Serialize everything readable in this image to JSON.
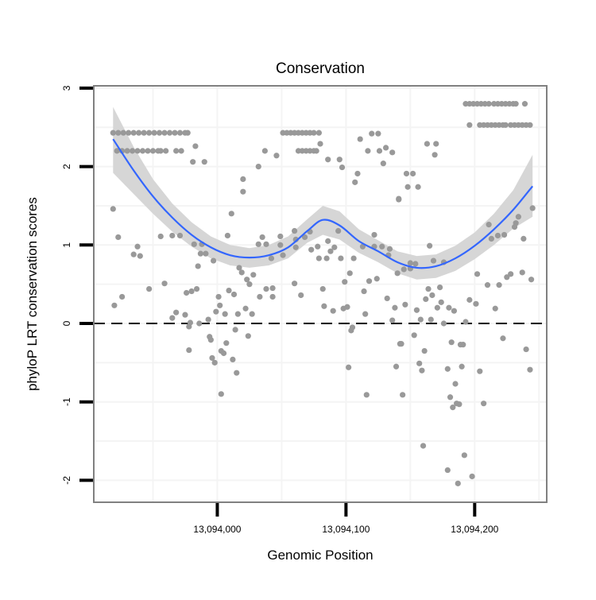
{
  "chart_data": {
    "type": "scatter",
    "title": "Conservation",
    "xlabel": "Genomic Position",
    "ylabel": "phyloP LRT conservation scores",
    "xlim": [
      13093904,
      13094256
    ],
    "ylim": [
      -2.3,
      3.0
    ],
    "x_ticks": [
      {
        "value": 13094000,
        "label": "13,094,000"
      },
      {
        "value": 13094100,
        "label": "13,094,100"
      },
      {
        "value": 13094200,
        "label": "13,094,200"
      }
    ],
    "y_ticks": [
      {
        "value": 3,
        "label": "3"
      },
      {
        "value": 2,
        "label": "2"
      },
      {
        "value": 1,
        "label": "1"
      },
      {
        "value": 0,
        "label": "0"
      },
      {
        "value": -1,
        "label": "-1"
      },
      {
        "value": -2,
        "label": "-2"
      }
    ],
    "grid": true,
    "reference_line": {
      "y": 0,
      "style": "dashed"
    },
    "colors": {
      "points": "#999999",
      "smooth": "#3366FF",
      "band": "#d6d6d6",
      "border": "#808080"
    },
    "rows": [
      {
        "y": 2.43,
        "x": [
          13093919,
          13093923,
          13093927,
          13093931,
          13093935,
          13093939,
          13093943,
          13093947,
          13093951,
          13093955,
          13093959,
          13093963,
          13093967,
          13093971,
          13093975,
          13093977,
          13094051,
          13094054,
          13094057,
          13094060,
          13094063,
          13094066,
          13094069,
          13094072,
          13094075,
          13094079
        ]
      },
      {
        "y": 2.2,
        "x": [
          13093922,
          13093926,
          13093930,
          13093934,
          13093938,
          13093942,
          13093946,
          13093950,
          13093954,
          13093956,
          13093960,
          13093968,
          13093972,
          13094063,
          13094066,
          13094069,
          13094072,
          13094075,
          13094077
        ]
      },
      {
        "y": 2.8,
        "x": [
          13094193,
          13094196,
          13094199,
          13094202,
          13094205,
          13094208,
          13094211,
          13094215,
          13094218,
          13094221,
          13094224,
          13094227,
          13094230,
          13094232,
          13094239
        ]
      },
      {
        "y": 2.53,
        "x": [
          13094196,
          13094204,
          13094207,
          13094210,
          13094213,
          13094216,
          13094219,
          13094222,
          13094224,
          13094228,
          13094231,
          13094234,
          13094237,
          13094240,
          13094243
        ]
      }
    ],
    "points": [
      [
        13093919,
        1.46
      ],
      [
        13093923,
        1.1
      ],
      [
        13093926,
        0.34
      ],
      [
        13093920,
        0.23
      ],
      [
        13093935,
        0.88
      ],
      [
        13093940,
        0.86
      ],
      [
        13093938,
        0.98
      ],
      [
        13093947,
        0.44
      ],
      [
        13093959,
        0.51
      ],
      [
        13093956,
        1.11
      ],
      [
        13093965,
        1.12
      ],
      [
        13093971,
        1.12
      ],
      [
        13093982,
        1.01
      ],
      [
        13093988,
        1.01
      ],
      [
        13093987,
        0.89
      ],
      [
        13093991,
        0.89
      ],
      [
        13093997,
        0.8
      ],
      [
        13093985,
        0.73
      ],
      [
        13094011,
        1.4
      ],
      [
        13094008,
        1.12
      ],
      [
        13094020,
        1.84
      ],
      [
        13094020,
        1.68
      ],
      [
        13093983,
        2.26
      ],
      [
        13093981,
        2.06
      ],
      [
        13093990,
        2.06
      ],
      [
        13094017,
        0.71
      ],
      [
        13094019,
        0.65
      ],
      [
        13094023,
        0.56
      ],
      [
        13094025,
        0.5
      ],
      [
        13093976,
        0.39
      ],
      [
        13093980,
        0.41
      ],
      [
        13093984,
        0.44
      ],
      [
        13094001,
        0.34
      ],
      [
        13094002,
        0.23
      ],
      [
        13094009,
        0.42
      ],
      [
        13094013,
        0.37
      ],
      [
        13093968,
        0.14
      ],
      [
        13093965,
        0.07
      ],
      [
        13093975,
        0.11
      ],
      [
        13093979,
        0.01
      ],
      [
        13093978,
        -0.04
      ],
      [
        13093986,
        0.0
      ],
      [
        13093993,
        0.05
      ],
      [
        13093999,
        0.15
      ],
      [
        13094006,
        0.12
      ],
      [
        13094016,
        0.12
      ],
      [
        13094022,
        0.19
      ],
      [
        13094027,
        0.12
      ],
      [
        13094014,
        -0.08
      ],
      [
        13094024,
        -0.16
      ],
      [
        13093978,
        -0.34
      ],
      [
        13093994,
        -0.17
      ],
      [
        13093995,
        -0.21
      ],
      [
        13094007,
        -0.25
      ],
      [
        13094003,
        -0.35
      ],
      [
        13094005,
        -0.38
      ],
      [
        13093996,
        -0.44
      ],
      [
        13093998,
        -0.5
      ],
      [
        13094012,
        -0.46
      ],
      [
        13094015,
        -0.63
      ],
      [
        13094003,
        -0.9
      ],
      [
        13094037,
        2.2
      ],
      [
        13094046,
        2.14
      ],
      [
        13094032,
        2.0
      ],
      [
        13094080,
        2.29
      ],
      [
        13094086,
        2.09
      ],
      [
        13094095,
        2.09
      ],
      [
        13094097,
        1.99
      ],
      [
        13094111,
        2.35
      ],
      [
        13094117,
        2.2
      ],
      [
        13094120,
        2.42
      ],
      [
        13094125,
        2.42
      ],
      [
        13094126,
        2.2
      ],
      [
        13094131,
        2.24
      ],
      [
        13094136,
        2.18
      ],
      [
        13094129,
        2.04
      ],
      [
        13094109,
        1.91
      ],
      [
        13094107,
        1.8
      ],
      [
        13094141,
        1.59
      ],
      [
        13094035,
        1.1
      ],
      [
        13094032,
        1.01
      ],
      [
        13094038,
        1.01
      ],
      [
        13094049,
        1.11
      ],
      [
        13094049,
        1.0
      ],
      [
        13094051,
        0.87
      ],
      [
        13094042,
        0.83
      ],
      [
        13094060,
        1.18
      ],
      [
        13094061,
        1.07
      ],
      [
        13094061,
        0.97
      ],
      [
        13094068,
        1.1
      ],
      [
        13094072,
        1.17
      ],
      [
        13094073,
        0.94
      ],
      [
        13094078,
        0.98
      ],
      [
        13094079,
        0.83
      ],
      [
        13094085,
        0.83
      ],
      [
        13094086,
        1.05
      ],
      [
        13094091,
        0.97
      ],
      [
        13094088,
        0.92
      ],
      [
        13094094,
        1.18
      ],
      [
        13094096,
        0.83
      ],
      [
        13094106,
        0.83
      ],
      [
        13094113,
        0.98
      ],
      [
        13094122,
        1.13
      ],
      [
        13094122,
        0.98
      ],
      [
        13094128,
        0.98
      ],
      [
        13094134,
        0.95
      ],
      [
        13094133,
        0.87
      ],
      [
        13094140,
        0.64
      ],
      [
        13094103,
        0.64
      ],
      [
        13094099,
        0.53
      ],
      [
        13094118,
        0.54
      ],
      [
        13094124,
        0.57
      ],
      [
        13094114,
        0.41
      ],
      [
        13094132,
        0.32
      ],
      [
        13094138,
        0.2
      ],
      [
        13094136,
        0.04
      ],
      [
        13094028,
        0.62
      ],
      [
        13094038,
        0.44
      ],
      [
        13094043,
        0.45
      ],
      [
        13094043,
        0.34
      ],
      [
        13094033,
        0.34
      ],
      [
        13094060,
        0.51
      ],
      [
        13094065,
        0.36
      ],
      [
        13094082,
        0.44
      ],
      [
        13094083,
        0.22
      ],
      [
        13094090,
        0.16
      ],
      [
        13094098,
        0.19
      ],
      [
        13094101,
        0.21
      ],
      [
        13094105,
        -0.05
      ],
      [
        13094104,
        -0.09
      ],
      [
        13094115,
        0.12
      ],
      [
        13094102,
        -0.56
      ],
      [
        13094116,
        -0.91
      ],
      [
        13094139,
        -0.55
      ],
      [
        13094142,
        -0.26
      ],
      [
        13094163,
        2.29
      ],
      [
        13094170,
        2.29
      ],
      [
        13094169,
        2.15
      ],
      [
        13094147,
        1.91
      ],
      [
        13094152,
        1.91
      ],
      [
        13094148,
        1.74
      ],
      [
        13094156,
        1.74
      ],
      [
        13094141,
        1.58
      ],
      [
        13094245,
        1.47
      ],
      [
        13094211,
        1.26
      ],
      [
        13094234,
        1.36
      ],
      [
        13094232,
        1.28
      ],
      [
        13094231,
        1.23
      ],
      [
        13094213,
        1.08
      ],
      [
        13094218,
        1.12
      ],
      [
        13094223,
        1.13
      ],
      [
        13094238,
        1.08
      ],
      [
        13094202,
        0.63
      ],
      [
        13094210,
        0.49
      ],
      [
        13094219,
        0.49
      ],
      [
        13094225,
        0.59
      ],
      [
        13094228,
        0.63
      ],
      [
        13094237,
        0.65
      ],
      [
        13094244,
        0.56
      ],
      [
        13094165,
        0.99
      ],
      [
        13094168,
        0.8
      ],
      [
        13094176,
        0.78
      ],
      [
        13094150,
        0.77
      ],
      [
        13094154,
        0.76
      ],
      [
        13094145,
        0.69
      ],
      [
        13094150,
        0.7
      ],
      [
        13094164,
        0.44
      ],
      [
        13094173,
        0.46
      ],
      [
        13094167,
        0.36
      ],
      [
        13094162,
        0.31
      ],
      [
        13094174,
        0.27
      ],
      [
        13094171,
        0.2
      ],
      [
        13094180,
        0.2
      ],
      [
        13094184,
        0.16
      ],
      [
        13094196,
        0.3
      ],
      [
        13094201,
        0.25
      ],
      [
        13094216,
        0.19
      ],
      [
        13094146,
        0.24
      ],
      [
        13094155,
        0.17
      ],
      [
        13094158,
        0.05
      ],
      [
        13094166,
        0.05
      ],
      [
        13094176,
        0.0
      ],
      [
        13094193,
        0.02
      ],
      [
        13094153,
        -0.15
      ],
      [
        13094143,
        -0.26
      ],
      [
        13094161,
        -0.35
      ],
      [
        13094182,
        -0.24
      ],
      [
        13094189,
        -0.27
      ],
      [
        13094191,
        -0.27
      ],
      [
        13094222,
        -0.19
      ],
      [
        13094240,
        -0.33
      ],
      [
        13094157,
        -0.51
      ],
      [
        13094159,
        -0.6
      ],
      [
        13094179,
        -0.58
      ],
      [
        13094190,
        -0.55
      ],
      [
        13094204,
        -0.61
      ],
      [
        13094243,
        -0.59
      ],
      [
        13094185,
        -0.77
      ],
      [
        13094181,
        -0.94
      ],
      [
        13094186,
        -1.02
      ],
      [
        13094183,
        -1.07
      ],
      [
        13094188,
        -1.03
      ],
      [
        13094207,
        -1.02
      ],
      [
        13094144,
        -0.91
      ],
      [
        13094160,
        -1.56
      ],
      [
        13094192,
        -1.68
      ],
      [
        13094179,
        -1.87
      ],
      [
        13094198,
        -1.95
      ],
      [
        13094187,
        -2.04
      ]
    ],
    "smooth": {
      "method": "loess",
      "x": [
        13093919,
        13093935,
        13093950,
        13093965,
        13093980,
        13093995,
        13094010,
        13094025,
        13094040,
        13094055,
        13094070,
        13094082,
        13094095,
        13094110,
        13094125,
        13094140,
        13094155,
        13094170,
        13094185,
        13094200,
        13094215,
        13094230,
        13094245
      ],
      "y": [
        2.35,
        1.95,
        1.62,
        1.35,
        1.13,
        0.97,
        0.87,
        0.84,
        0.87,
        0.97,
        1.18,
        1.32,
        1.25,
        1.05,
        0.92,
        0.78,
        0.71,
        0.73,
        0.83,
        0.99,
        1.2,
        1.45,
        1.75
      ],
      "lo": [
        1.92,
        1.65,
        1.4,
        1.17,
        0.98,
        0.83,
        0.74,
        0.71,
        0.74,
        0.83,
        1.03,
        1.13,
        1.07,
        0.9,
        0.78,
        0.64,
        0.56,
        0.58,
        0.67,
        0.82,
        1.0,
        1.21,
        1.36
      ],
      "hi": [
        2.76,
        2.25,
        1.84,
        1.53,
        1.29,
        1.11,
        1.0,
        0.96,
        1.0,
        1.11,
        1.33,
        1.5,
        1.43,
        1.2,
        1.06,
        0.92,
        0.86,
        0.88,
        0.99,
        1.16,
        1.4,
        1.7,
        2.15
      ]
    }
  }
}
